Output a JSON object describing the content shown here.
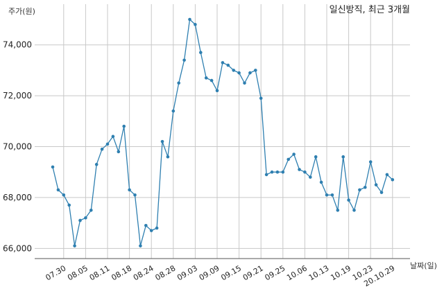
{
  "chart_data": {
    "type": "line",
    "title": "일신방직, 최근 3개월",
    "ylabel": "주가(원)",
    "xlabel": "날짜(일)",
    "ylim": [
      65600,
      75600
    ],
    "yticks": [
      66000,
      68000,
      70000,
      72000,
      74000
    ],
    "ytick_labels": [
      "66,000",
      "68,000",
      "70,000",
      "72,000",
      "74,000"
    ],
    "xtick_labels": [
      "07.30",
      "08.05",
      "08.11",
      "08.18",
      "08.24",
      "08.28",
      "09.03",
      "09.09",
      "09.15",
      "09.21",
      "09.25",
      "10.06",
      "10.13",
      "10.19",
      "10.23",
      "20.10.29"
    ],
    "xtick_positions": [
      2,
      6,
      10,
      14,
      18,
      22,
      26,
      30,
      34,
      38,
      42,
      46,
      50,
      54,
      58,
      62
    ],
    "grid": true,
    "color": "#2e7fb0",
    "series": [
      {
        "values": [
          69200,
          68300,
          68100,
          67700,
          66100,
          67100,
          67200,
          67500,
          69300,
          69900,
          70100,
          70400,
          69800,
          70800,
          68300,
          68100,
          66100,
          66900,
          66700,
          66800,
          70200,
          69600,
          71400,
          72500,
          73400,
          75000,
          74800,
          73700,
          72700,
          72600,
          72200,
          73300,
          73200,
          73000,
          72900,
          72500,
          72900,
          73000,
          71900,
          68900,
          69000,
          69000,
          69000,
          69500,
          69700,
          69100,
          69000,
          68800,
          69600,
          68600,
          68100,
          68100,
          67500,
          69600,
          67900,
          67500,
          68300,
          68400,
          69400,
          68500,
          68200,
          68900,
          68700
        ]
      }
    ]
  }
}
